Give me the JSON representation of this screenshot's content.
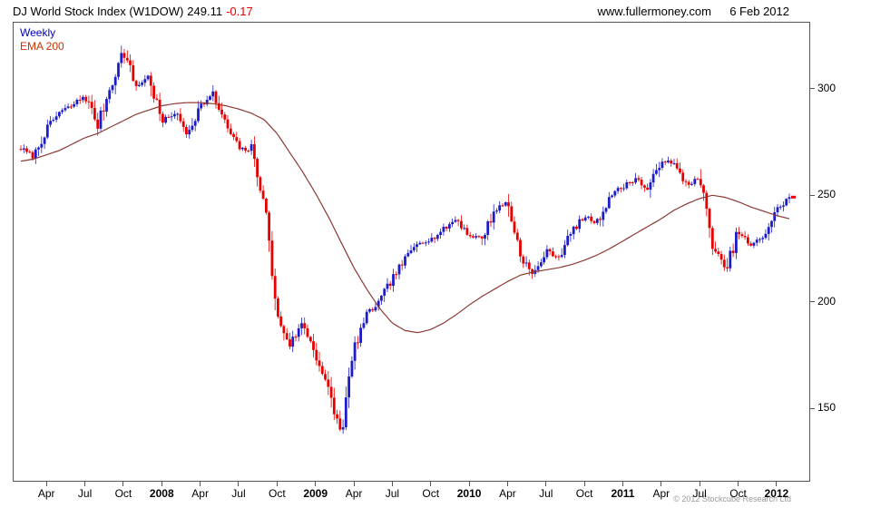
{
  "header": {
    "instrument": "DJ World Stock Index (W1DOW)",
    "price": "249.11",
    "change": "-0.17",
    "site": "www.fullermoney.com",
    "date": "6 Feb 2012"
  },
  "legend": {
    "weekly": "Weekly",
    "ema": "EMA 200"
  },
  "footer": {
    "copyright": "© 2012 Stockcube Research Ltd"
  },
  "chart_data": {
    "type": "candlestick",
    "title": "DJ World Stock Index (W1DOW)",
    "timeframe": "Weekly",
    "overlay": "EMA 200",
    "last_price": 249.11,
    "change": -0.17,
    "ylim": [
      116,
      331
    ],
    "y_ticks": [
      150,
      200,
      250,
      300
    ],
    "x_start": "2007-02",
    "x_end": "2012-02",
    "grid": false,
    "legend_position": "top-left",
    "noise_seed": 7,
    "pad_left": 8,
    "pad_right": 22,
    "colors": {
      "up": "#1c1cc8",
      "down": "#e60000",
      "ema": "#8d3a32",
      "legend_weekly": "#0000bb",
      "legend_ema": "#cc3300",
      "axis": "#555555",
      "border": "#555555"
    },
    "months": [
      {
        "c": 272,
        "e": 266
      },
      {
        "c": 268,
        "e": 267
      },
      {
        "l": "Apr",
        "c": 281,
        "e": 269
      },
      {
        "c": 289,
        "e": 271
      },
      {
        "c": 292,
        "e": 274
      },
      {
        "l": "Jul",
        "c": 297,
        "e": 277
      },
      {
        "c": 283,
        "e": 279
      },
      {
        "c": 301,
        "e": 282
      },
      {
        "l": "Oct",
        "c": 318,
        "e": 285
      },
      {
        "c": 301,
        "e": 288
      },
      {
        "c": 306,
        "e": 290
      },
      {
        "l": "2008",
        "c": 284,
        "e": 292
      },
      {
        "c": 289,
        "e": 293
      },
      {
        "c": 279,
        "e": 293.5
      },
      {
        "l": "Apr",
        "c": 292,
        "e": 293.5
      },
      {
        "c": 297,
        "e": 293
      },
      {
        "c": 283,
        "e": 292
      },
      {
        "l": "Jul",
        "c": 272,
        "e": 290.5
      },
      {
        "c": 271,
        "e": 288.5
      },
      {
        "c": 248,
        "e": 285.5
      },
      {
        "l": "Oct",
        "c": 193,
        "e": 279
      },
      {
        "c": 180,
        "e": 270
      },
      {
        "c": 190,
        "e": 261
      },
      {
        "l": "2009",
        "c": 176,
        "e": 251
      },
      {
        "c": 158,
        "e": 240
      },
      {
        "c": 138,
        "e": 228
      },
      {
        "l": "Apr",
        "c": 178,
        "e": 216
      },
      {
        "c": 194,
        "e": 206
      },
      {
        "c": 200,
        "e": 197
      },
      {
        "l": "Jul",
        "c": 211,
        "e": 190
      },
      {
        "c": 220,
        "e": 186.5
      },
      {
        "c": 228,
        "e": 185.5
      },
      {
        "l": "Oct",
        "c": 229,
        "e": 187
      },
      {
        "c": 234,
        "e": 190
      },
      {
        "c": 239,
        "e": 194
      },
      {
        "l": "2010",
        "c": 231,
        "e": 198.5
      },
      {
        "c": 230,
        "e": 202.5
      },
      {
        "c": 243,
        "e": 206
      },
      {
        "l": "Apr",
        "c": 247,
        "e": 209.5
      },
      {
        "c": 222,
        "e": 212.5
      },
      {
        "c": 212,
        "e": 214
      },
      {
        "l": "Jul",
        "c": 224,
        "e": 215
      },
      {
        "c": 221,
        "e": 216
      },
      {
        "c": 233,
        "e": 217.5
      },
      {
        "l": "Oct",
        "c": 240,
        "e": 219.5
      },
      {
        "c": 237,
        "e": 222
      },
      {
        "c": 250,
        "e": 225
      },
      {
        "l": "2011",
        "c": 254,
        "e": 228.5
      },
      {
        "c": 258,
        "e": 232
      },
      {
        "c": 252,
        "e": 235.5
      },
      {
        "l": "Apr",
        "c": 267,
        "e": 239
      },
      {
        "c": 264,
        "e": 243
      },
      {
        "c": 255,
        "e": 246
      },
      {
        "l": "Jul",
        "c": 258,
        "e": 248.5
      },
      {
        "c": 227,
        "e": 250
      },
      {
        "c": 214,
        "e": 249
      },
      {
        "l": "Oct",
        "c": 233,
        "e": 247
      },
      {
        "c": 226,
        "e": 244.5
      },
      {
        "c": 231,
        "e": 242.5
      },
      {
        "l": "2012",
        "c": 243,
        "e": 240.5
      },
      {
        "c": 249.11,
        "e": 239
      }
    ]
  }
}
